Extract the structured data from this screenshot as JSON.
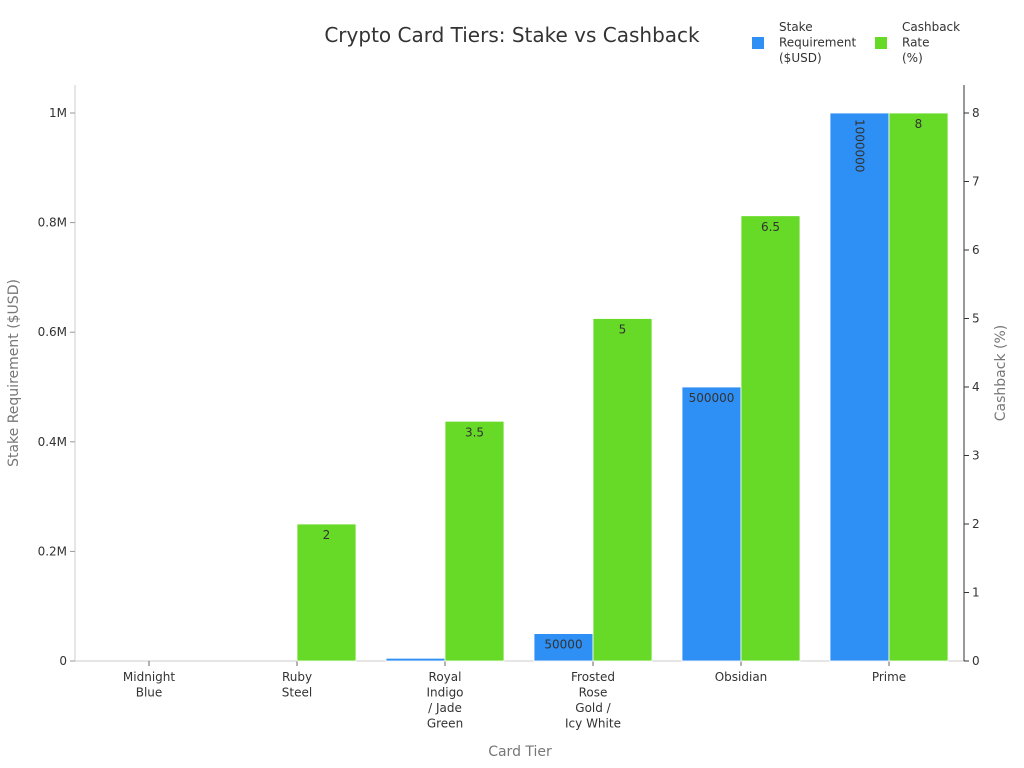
{
  "chart_data": {
    "type": "bar",
    "title": "Crypto Card Tiers: Stake vs Cashback",
    "xlabel": "Card Tier",
    "ylabel": "Stake Requirement ($USD)",
    "y2label": "Cashback (%)",
    "categories": [
      [
        "Midnight",
        "Blue"
      ],
      [
        "Ruby",
        "Steel"
      ],
      [
        "Royal",
        "Indigo",
        "/ Jade",
        "Green"
      ],
      [
        "Frosted",
        "Rose",
        "Gold /",
        "Icy White"
      ],
      [
        "Obsidian"
      ],
      [
        "Prime"
      ]
    ],
    "category_names": [
      "Midnight Blue",
      "Ruby Steel",
      "Royal Indigo / Jade Green",
      "Frosted Rose Gold / Icy White",
      "Obsidian",
      "Prime"
    ],
    "series": [
      {
        "name": "Stake Requirement ($USD)",
        "legend_lines": [
          "Stake",
          "Requirement",
          "($USD)"
        ],
        "axis": "left",
        "color": "#2e8ff5",
        "values": [
          0,
          400,
          5000,
          50000,
          500000,
          1000000
        ],
        "labels": [
          "",
          "",
          "",
          "50000",
          "500000",
          "1000000"
        ],
        "label_rotated": [
          false,
          false,
          false,
          false,
          false,
          true
        ]
      },
      {
        "name": "Cashback Rate (%)",
        "legend_lines": [
          "Cashback",
          "Rate",
          "(%)"
        ],
        "axis": "right",
        "color": "#66da26",
        "values": [
          0,
          2,
          3.5,
          5,
          6.5,
          8
        ],
        "labels": [
          "",
          "2",
          "3.5",
          "5",
          "6.5",
          "8"
        ],
        "label_rotated": [
          false,
          false,
          false,
          false,
          false,
          false
        ]
      }
    ],
    "ylim": [
      0,
      1050000
    ],
    "y2lim": [
      0,
      8.4
    ],
    "yticks": [
      {
        "value": 0,
        "label": "0"
      },
      {
        "value": 200000,
        "label": "0.2M"
      },
      {
        "value": 400000,
        "label": "0.4M"
      },
      {
        "value": 600000,
        "label": "0.6M"
      },
      {
        "value": 800000,
        "label": "0.8M"
      },
      {
        "value": 1000000,
        "label": "1M"
      }
    ],
    "y2ticks": [
      {
        "value": 0,
        "label": "0"
      },
      {
        "value": 1,
        "label": "1"
      },
      {
        "value": 2,
        "label": "2"
      },
      {
        "value": 3,
        "label": "3"
      },
      {
        "value": 4,
        "label": "4"
      },
      {
        "value": 5,
        "label": "5"
      },
      {
        "value": 6,
        "label": "6"
      },
      {
        "value": 7,
        "label": "7"
      },
      {
        "value": 8,
        "label": "8"
      }
    ],
    "grid": false,
    "legend_position": "top-right"
  }
}
